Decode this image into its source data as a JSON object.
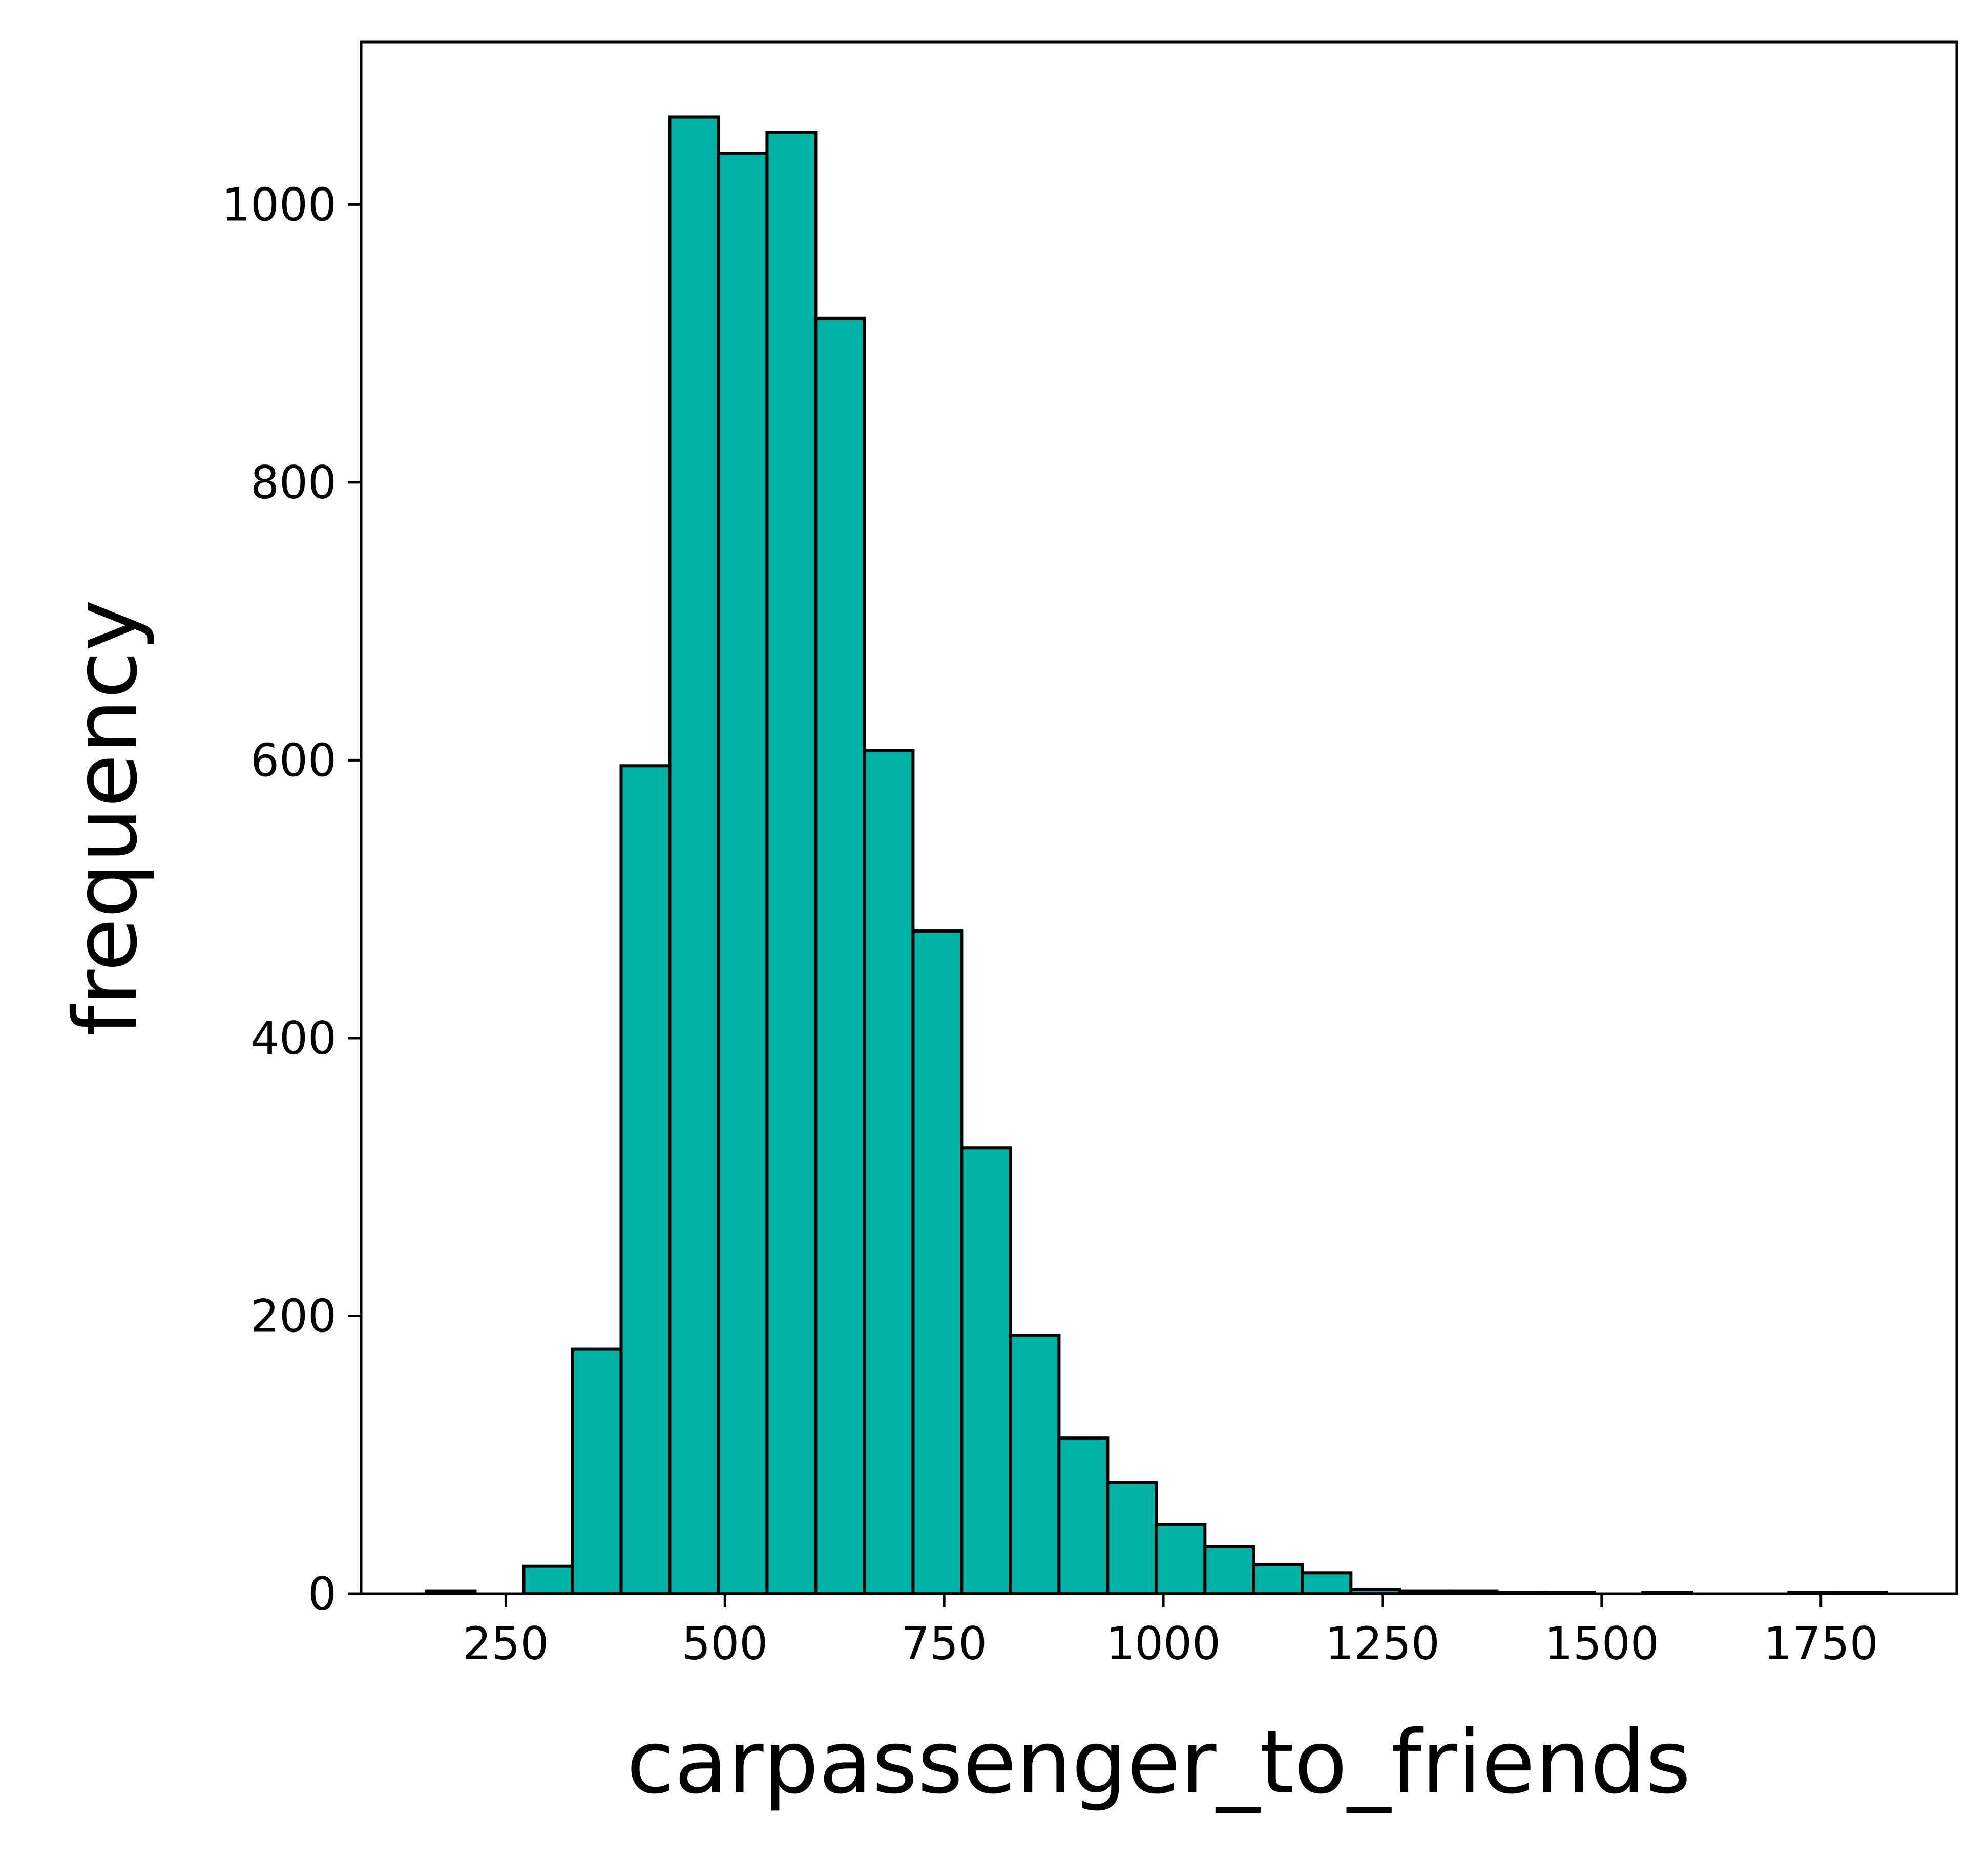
{
  "chart_data": {
    "type": "bar",
    "subtype": "histogram",
    "xlabel": "carpassenger_to_friends",
    "ylabel": "frequency",
    "xlim": [
      85,
      1905
    ],
    "ylim": [
      0,
      1117
    ],
    "x_ticks": [
      250,
      500,
      750,
      1000,
      1250,
      1500,
      1750
    ],
    "y_ticks": [
      0,
      200,
      400,
      600,
      800,
      1000
    ],
    "bar_color": "#00b3a6",
    "edge_color": "#000000",
    "grid": false,
    "bin_width": 55.5,
    "bin_edges_start": 159.5,
    "values": [
      2,
      0,
      20,
      176,
      596,
      1063,
      1037,
      1052,
      918,
      607,
      477,
      321,
      186,
      112,
      80,
      50,
      34,
      21,
      15,
      3,
      2,
      2,
      1,
      1,
      0,
      1,
      0,
      0,
      1,
      1
    ]
  }
}
